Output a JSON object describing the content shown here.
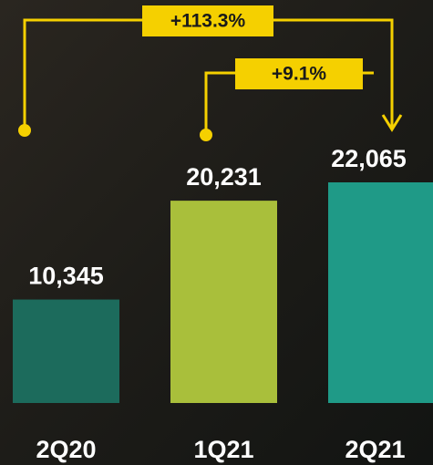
{
  "chart_data": {
    "type": "bar",
    "categories": [
      "2Q20",
      "1Q21",
      "2Q21"
    ],
    "values": [
      10345,
      20231,
      22065
    ],
    "value_labels": [
      "10,345",
      "20,231",
      "22,065"
    ],
    "colors": [
      "#1c6b5c",
      "#a9bf3b",
      "#1f9a87"
    ],
    "annotations": [
      {
        "text": "+113.3%"
      },
      {
        "text": "+9.1%"
      }
    ]
  }
}
